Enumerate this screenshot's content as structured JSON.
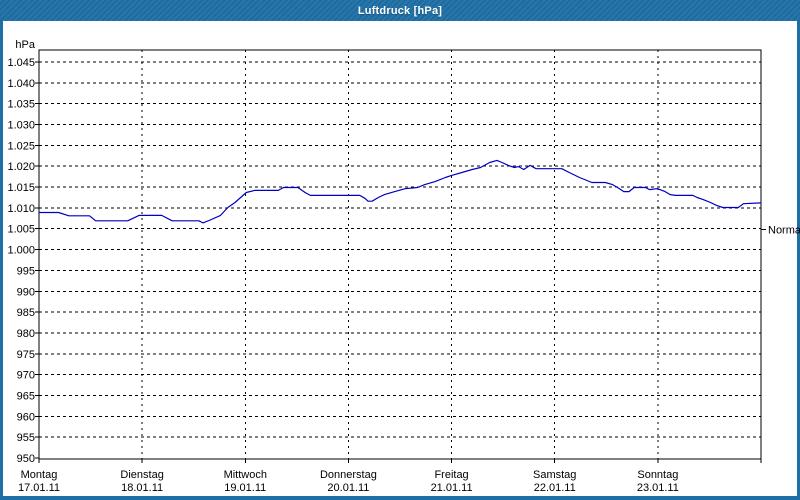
{
  "window": {
    "title": "Luftdruck [hPa]"
  },
  "colors": {
    "titlebar_bg": "#1E6FA5",
    "frame": "#1E6FA5",
    "title_text": "#FFFFFF",
    "plot_bg": "#FFFFFF",
    "plot_border": "#000000",
    "grid": "#000000",
    "label_text": "#000000",
    "line": "#0000C0"
  },
  "chart_data": {
    "type": "line",
    "title": "Luftdruck [hPa]",
    "ylabel": "hPa",
    "xlabel": "",
    "ylim": [
      950,
      1048
    ],
    "grid": true,
    "legend": "none",
    "y_ticks": [
      {
        "value": 1045,
        "label": "1.045"
      },
      {
        "value": 1040,
        "label": "1.040"
      },
      {
        "value": 1035,
        "label": "1.035"
      },
      {
        "value": 1030,
        "label": "1.030"
      },
      {
        "value": 1025,
        "label": "1.025"
      },
      {
        "value": 1020,
        "label": "1.020"
      },
      {
        "value": 1015,
        "label": "1.015"
      },
      {
        "value": 1010,
        "label": "1.010"
      },
      {
        "value": 1005,
        "label": "1.005"
      },
      {
        "value": 1000,
        "label": "1.000"
      },
      {
        "value": 995,
        "label": "995"
      },
      {
        "value": 990,
        "label": "990"
      },
      {
        "value": 985,
        "label": "985"
      },
      {
        "value": 980,
        "label": "980"
      },
      {
        "value": 975,
        "label": "975"
      },
      {
        "value": 970,
        "label": "970"
      },
      {
        "value": 965,
        "label": "965"
      },
      {
        "value": 960,
        "label": "960"
      },
      {
        "value": 955,
        "label": "955"
      },
      {
        "value": 950,
        "label": "950"
      }
    ],
    "x_days": [
      {
        "name": "Montag",
        "date": "17.01.11"
      },
      {
        "name": "Dienstag",
        "date": "18.01.11"
      },
      {
        "name": "Mittwoch",
        "date": "19.01.11"
      },
      {
        "name": "Donnerstag",
        "date": "20.01.11"
      },
      {
        "name": "Freitag",
        "date": "21.01.11"
      },
      {
        "name": "Samstag",
        "date": "22.01.11"
      },
      {
        "name": "Sonntag",
        "date": "23.01.11"
      }
    ],
    "annotations": [
      {
        "label": "Normal",
        "value": 1004.8
      }
    ],
    "series": [
      {
        "name": "Luftdruck",
        "x": [
          0.0,
          0.19,
          0.29,
          0.49,
          0.55,
          0.86,
          0.97,
          1.19,
          1.29,
          1.55,
          1.59,
          1.66,
          1.76,
          1.83,
          1.9,
          2.01,
          2.09,
          2.32,
          2.37,
          2.51,
          2.58,
          2.63,
          3.0,
          3.11,
          3.16,
          3.19,
          3.23,
          3.29,
          3.35,
          3.45,
          3.55,
          3.67,
          3.74,
          3.84,
          3.94,
          4.0,
          4.1,
          4.2,
          4.28,
          4.37,
          4.44,
          4.49,
          4.55,
          4.61,
          4.65,
          4.7,
          4.76,
          4.82,
          5.0,
          5.07,
          5.14,
          5.24,
          5.29,
          5.36,
          5.49,
          5.56,
          5.61,
          5.67,
          5.72,
          5.77,
          5.88,
          5.92,
          5.99,
          6.02,
          6.07,
          6.12,
          6.17,
          6.34,
          6.38,
          6.44,
          6.51,
          6.57,
          6.63,
          6.78,
          6.83,
          7.0
        ],
        "y": [
          1008.9,
          1008.9,
          1008.1,
          1008.1,
          1006.9,
          1006.9,
          1008.2,
          1008.2,
          1006.9,
          1006.9,
          1006.4,
          1007.1,
          1008.2,
          1010.1,
          1011.3,
          1013.7,
          1014.2,
          1014.2,
          1014.9,
          1014.9,
          1013.7,
          1013.0,
          1013.0,
          1013.0,
          1012.3,
          1011.6,
          1011.6,
          1012.5,
          1013.2,
          1013.9,
          1014.6,
          1014.9,
          1015.6,
          1016.3,
          1017.3,
          1017.8,
          1018.5,
          1019.2,
          1019.7,
          1020.9,
          1021.4,
          1020.9,
          1020.2,
          1019.7,
          1019.9,
          1019.2,
          1020.2,
          1019.4,
          1019.4,
          1019.4,
          1018.5,
          1017.3,
          1016.8,
          1016.1,
          1016.1,
          1015.6,
          1014.9,
          1013.9,
          1013.9,
          1014.9,
          1014.9,
          1014.4,
          1014.6,
          1014.4,
          1013.9,
          1013.2,
          1013.0,
          1013.0,
          1012.5,
          1012.0,
          1011.3,
          1010.6,
          1010.1,
          1010.1,
          1011.0,
          1011.2
        ]
      }
    ]
  }
}
